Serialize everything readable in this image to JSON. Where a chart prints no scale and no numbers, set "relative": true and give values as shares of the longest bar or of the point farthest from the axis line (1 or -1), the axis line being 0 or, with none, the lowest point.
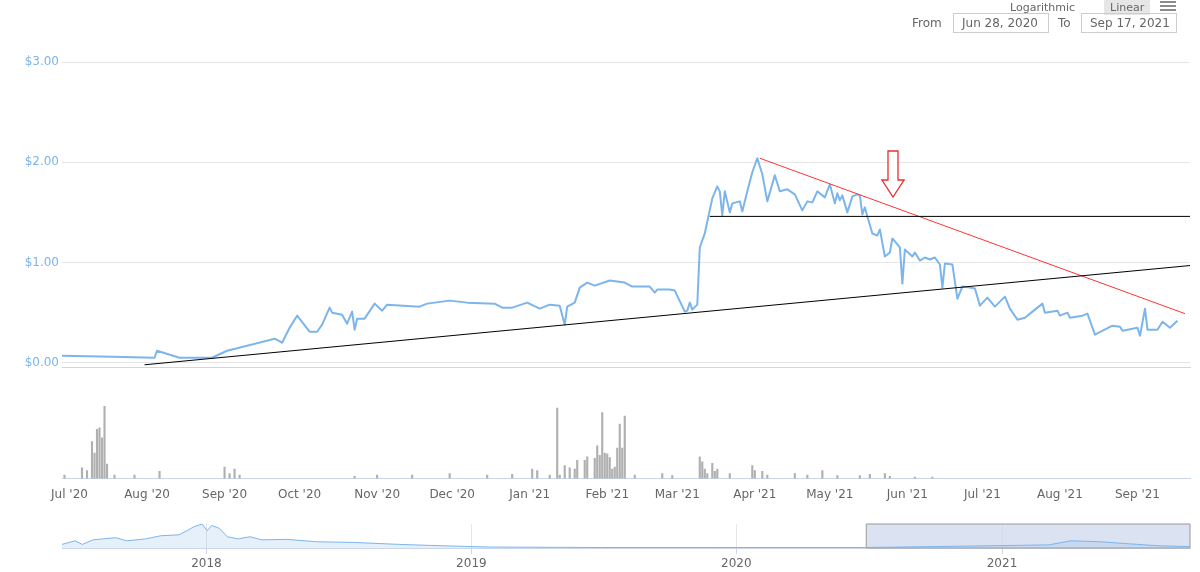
{
  "chart_data": [
    {
      "type": "line",
      "annotations": [
        "Logarithmic",
        "Linear",
        "From",
        "Jun 28, 2020",
        "To",
        "Sep 17, 2021"
      ],
      "xlim": [
        "2020-06-28",
        "2021-09-22"
      ],
      "xticks": [
        {
          "value": "2020-07-01",
          "label": null
        },
        {
          "value": "2021-09-01",
          "label": null
        }
      ],
      "ylim": [
        -0.05,
        3
      ],
      "yticks": [
        {
          "value": 0,
          "label": "$0.00"
        },
        {
          "value": 1,
          "label": "$1.00"
        },
        {
          "value": 2,
          "label": "$2.00"
        },
        {
          "value": 3,
          "label": "$3.00"
        }
      ],
      "grid": "y",
      "tick_labels": "y",
      "x": [
        "2020-06-28",
        "2020-07-18",
        "2020-08-04",
        "2020-08-05",
        "2020-08-14",
        "2020-08-27",
        "2020-09-02",
        "2020-09-21",
        "2020-09-24",
        "2020-09-27",
        "2020-09-30",
        "2020-10-05",
        "2020-10-08",
        "2020-10-10",
        "2020-10-13",
        "2020-10-14",
        "2020-10-18",
        "2020-10-20",
        "2020-10-22",
        "2020-10-23",
        "2020-10-24",
        "2020-10-27",
        "2020-10-31",
        "2020-11-03",
        "2020-11-05",
        "2020-11-18",
        "2020-11-21",
        "2020-11-30",
        "2020-12-07",
        "2020-12-18",
        "2020-12-21",
        "2020-12-25",
        "2020-12-31",
        "2021-01-05",
        "2021-01-09",
        "2021-01-13",
        "2021-01-15",
        "2021-01-16",
        "2021-01-19",
        "2021-01-21",
        "2021-01-24",
        "2021-01-27",
        "2021-02-02",
        "2021-02-08",
        "2021-02-11",
        "2021-02-18",
        "2021-02-20",
        "2021-02-21",
        "2021-02-26",
        "2021-02-28",
        "2021-03-04",
        "2021-03-05",
        "2021-03-06",
        "2021-03-07",
        "2021-03-09",
        "2021-03-10",
        "2021-03-12",
        "2021-03-15",
        "2021-03-17",
        "2021-03-18",
        "2021-03-19",
        "2021-03-20",
        "2021-03-22",
        "2021-03-23",
        "2021-03-26",
        "2021-03-27",
        "2021-03-29",
        "2021-03-31",
        "2021-04-02",
        "2021-04-04",
        "2021-04-06",
        "2021-04-09",
        "2021-04-11",
        "2021-04-14",
        "2021-04-17",
        "2021-04-20",
        "2021-04-22",
        "2021-04-24",
        "2021-04-26",
        "2021-04-29",
        "2021-05-01",
        "2021-05-03",
        "2021-05-04",
        "2021-05-05",
        "2021-05-06",
        "2021-05-08",
        "2021-05-10",
        "2021-05-12",
        "2021-05-13",
        "2021-05-14",
        "2021-05-15",
        "2021-05-16",
        "2021-05-18",
        "2021-05-20",
        "2021-05-21",
        "2021-05-23",
        "2021-05-25",
        "2021-05-26",
        "2021-05-29",
        "2021-05-30",
        "2021-05-31",
        "2021-06-03",
        "2021-06-04",
        "2021-06-06",
        "2021-06-08",
        "2021-06-10",
        "2021-06-12",
        "2021-06-14",
        "2021-06-15",
        "2021-06-16",
        "2021-06-19",
        "2021-06-21",
        "2021-06-23",
        "2021-06-26",
        "2021-06-28",
        "2021-06-30",
        "2021-07-03",
        "2021-07-06",
        "2021-07-10",
        "2021-07-12",
        "2021-07-15",
        "2021-07-18",
        "2021-07-21",
        "2021-07-25",
        "2021-07-26",
        "2021-07-31",
        "2021-08-01",
        "2021-08-04",
        "2021-08-05",
        "2021-08-10",
        "2021-08-12",
        "2021-08-15",
        "2021-08-22",
        "2021-08-25",
        "2021-08-26",
        "2021-09-01",
        "2021-09-02",
        "2021-09-04",
        "2021-09-05",
        "2021-09-09",
        "2021-09-11",
        "2021-09-14",
        "2021-09-17"
      ],
      "series": [
        {
          "color": "#7cb5ec",
          "values": [
            0.07,
            0.06,
            0.05,
            0.12,
            0.05,
            0.05,
            0.12,
            0.24,
            0.2,
            0.35,
            0.47,
            0.31,
            0.31,
            0.38,
            0.55,
            0.5,
            0.48,
            0.39,
            0.51,
            0.33,
            0.44,
            0.44,
            0.59,
            0.52,
            0.58,
            0.56,
            0.59,
            0.62,
            0.6,
            0.59,
            0.55,
            0.55,
            0.6,
            0.54,
            0.58,
            0.57,
            0.38,
            0.56,
            0.6,
            0.75,
            0.8,
            0.77,
            0.82,
            0.8,
            0.76,
            0.76,
            0.7,
            0.73,
            0.73,
            0.72,
            0.51,
            0.52,
            0.6,
            0.53,
            0.58,
            1.15,
            1.29,
            1.64,
            1.76,
            1.71,
            1.47,
            1.71,
            1.5,
            1.59,
            1.61,
            1.51,
            1.71,
            1.9,
            2.04,
            1.88,
            1.61,
            1.87,
            1.71,
            1.73,
            1.68,
            1.52,
            1.61,
            1.6,
            1.71,
            1.65,
            1.78,
            1.59,
            1.69,
            1.62,
            1.67,
            1.5,
            1.66,
            1.68,
            1.67,
            1.48,
            1.55,
            1.46,
            1.29,
            1.27,
            1.33,
            1.06,
            1.1,
            1.24,
            1.15,
            0.79,
            1.13,
            1.06,
            1.1,
            1.02,
            1.05,
            1.03,
            1.05,
            0.98,
            0.75,
            0.99,
            0.98,
            0.64,
            0.76,
            0.75,
            0.74,
            0.57,
            0.65,
            0.56,
            0.66,
            0.54,
            0.43,
            0.45,
            0.51,
            0.59,
            0.5,
            0.52,
            0.47,
            0.5,
            0.45,
            0.47,
            0.49,
            0.28,
            0.37,
            0.36,
            0.32,
            0.35,
            0.27,
            0.54,
            0.33,
            0.33,
            0.41,
            0.35,
            0.42
          ]
        },
        {
          "type": "line",
          "color": "#000000",
          "x": [
            "2020-07-31",
            "2021-09-22"
          ],
          "values": [
            -0.02,
            0.97
          ]
        },
        {
          "type": "line",
          "color": "#000000",
          "x": [
            "2021-03-14",
            "2021-09-22"
          ],
          "values": [
            1.46,
            1.46
          ]
        },
        {
          "type": "line",
          "color": "#ff3333",
          "x": [
            "2021-04-03",
            "2021-09-20"
          ],
          "values": [
            2.04,
            0.49
          ]
        }
      ]
    },
    {
      "type": "bar",
      "relative": true,
      "color": "#b0b0b0",
      "tick_labels": "x",
      "xlim": [
        "2020-06-28",
        "2021-09-22"
      ],
      "xticks": [
        {
          "value": "2020-07-01",
          "label": "Jul '20"
        },
        {
          "value": "2020-08-01",
          "label": "Aug '20"
        },
        {
          "value": "2020-09-01",
          "label": "Sep '20"
        },
        {
          "value": "2020-10-01",
          "label": "Oct '20"
        },
        {
          "value": "2020-11-01",
          "label": "Nov '20"
        },
        {
          "value": "2020-12-01",
          "label": "Dec '20"
        },
        {
          "value": "2021-01-01",
          "label": "Jan '21"
        },
        {
          "value": "2021-02-01",
          "label": "Feb '21"
        },
        {
          "value": "2021-03-01",
          "label": "Mar '21"
        },
        {
          "value": "2021-04-01",
          "label": "Apr '21"
        },
        {
          "value": "2021-05-01",
          "label": "May '21"
        },
        {
          "value": "2021-06-01",
          "label": "Jun '21"
        },
        {
          "value": "2021-07-01",
          "label": "Jul '21"
        },
        {
          "value": "2021-08-01",
          "label": "Aug '21"
        },
        {
          "value": "2021-09-01",
          "label": "Sep '21"
        }
      ],
      "x": [
        "2020-06-29",
        "2020-07-06",
        "2020-07-08",
        "2020-07-10",
        "2020-07-11",
        "2020-07-12",
        "2020-07-13",
        "2020-07-14",
        "2020-07-15",
        "2020-07-16",
        "2020-07-19",
        "2020-07-27",
        "2020-08-06",
        "2020-09-01",
        "2020-09-03",
        "2020-09-05",
        "2020-09-07",
        "2020-10-23",
        "2020-11-01",
        "2020-11-15",
        "2020-11-30",
        "2020-12-15",
        "2020-12-25",
        "2021-01-02",
        "2021-01-04",
        "2021-01-09",
        "2021-01-12",
        "2021-01-13",
        "2021-01-15",
        "2021-01-17",
        "2021-01-19",
        "2021-01-20",
        "2021-01-23",
        "2021-01-24",
        "2021-01-27",
        "2021-01-28",
        "2021-01-29",
        "2021-01-30",
        "2021-01-31",
        "2021-02-01",
        "2021-02-02",
        "2021-02-03",
        "2021-02-04",
        "2021-02-05",
        "2021-02-06",
        "2021-02-07",
        "2021-02-08",
        "2021-02-12",
        "2021-02-23",
        "2021-02-27",
        "2021-03-10",
        "2021-03-11",
        "2021-03-12",
        "2021-03-13",
        "2021-03-15",
        "2021-03-16",
        "2021-03-17",
        "2021-03-22",
        "2021-03-31",
        "2021-04-01",
        "2021-04-04",
        "2021-04-06",
        "2021-04-17",
        "2021-04-22",
        "2021-04-28",
        "2021-05-04",
        "2021-05-13",
        "2021-05-17",
        "2021-05-23",
        "2021-05-25",
        "2021-06-04",
        "2021-06-11"
      ],
      "values": [
        0.05,
        0.15,
        0.11,
        0.51,
        0.35,
        0.68,
        0.7,
        0.56,
        1,
        0.2,
        0.05,
        0.05,
        0.1,
        0.16,
        0.07,
        0.13,
        0.05,
        0.03,
        0.05,
        0.05,
        0.07,
        0.05,
        0.06,
        0.13,
        0.11,
        0.05,
        0.97,
        0.05,
        0.18,
        0.15,
        0.13,
        0.25,
        0.25,
        0.3,
        0.28,
        0.45,
        0.32,
        0.91,
        0.35,
        0.34,
        0.29,
        0.13,
        0.16,
        0.42,
        0.75,
        0.42,
        0.86,
        0.05,
        0.07,
        0.04,
        0.3,
        0.23,
        0.13,
        0.07,
        0.21,
        0.1,
        0.13,
        0.07,
        0.18,
        0.11,
        0.1,
        0.05,
        0.07,
        0.05,
        0.11,
        0.04,
        0.04,
        0.06,
        0.07,
        0.03,
        0.02,
        0.02
      ]
    },
    {
      "type": "area",
      "relative": true,
      "color": "#7cb5ec",
      "tick_labels": "x",
      "grid": "x",
      "xlim": [
        "2017-06-16",
        "2021-09-17"
      ],
      "xticks": [
        {
          "value": "2018-01-01",
          "label": "2018"
        },
        {
          "value": "2019-01-01",
          "label": "2019"
        },
        {
          "value": "2020-01-01",
          "label": "2020"
        },
        {
          "value": "2021-01-01",
          "label": "2021"
        }
      ],
      "bands": [
        {
          "axis": "x",
          "from": "2020-06-28",
          "to": "2021-09-17",
          "color": "#ccd6eb"
        }
      ],
      "x": [
        "2017-06-16",
        "2017-07-04",
        "2017-07-14",
        "2017-07-29",
        "2017-08-29",
        "2017-09-13",
        "2017-10-09",
        "2017-10-30",
        "2017-11-24",
        "2017-12-05",
        "2017-12-15",
        "2017-12-26",
        "2018-01-02",
        "2018-01-08",
        "2018-01-18",
        "2018-01-30",
        "2018-02-14",
        "2018-03-02",
        "2018-03-18",
        "2018-04-22",
        "2018-06-02",
        "2018-07-24",
        "2018-09-24",
        "2018-11-24",
        "2019-01-25",
        "2019-06-29",
        "2019-11-30",
        "2020-06-22",
        "2020-10-03",
        "2021-03-06",
        "2021-04-06",
        "2021-05-17",
        "2021-06-17",
        "2021-08-07",
        "2021-09-17"
      ],
      "values": [
        0.15,
        0.3,
        0.15,
        0.34,
        0.43,
        0.3,
        0.38,
        0.51,
        0.55,
        0.72,
        0.89,
        1,
        0.72,
        0.94,
        0.83,
        0.47,
        0.38,
        0.47,
        0.34,
        0.36,
        0.26,
        0.23,
        0.15,
        0.09,
        0.04,
        0.02,
        0.02,
        0.02,
        0.06,
        0.13,
        0.3,
        0.26,
        0.19,
        0.09,
        0.06
      ]
    }
  ]
}
